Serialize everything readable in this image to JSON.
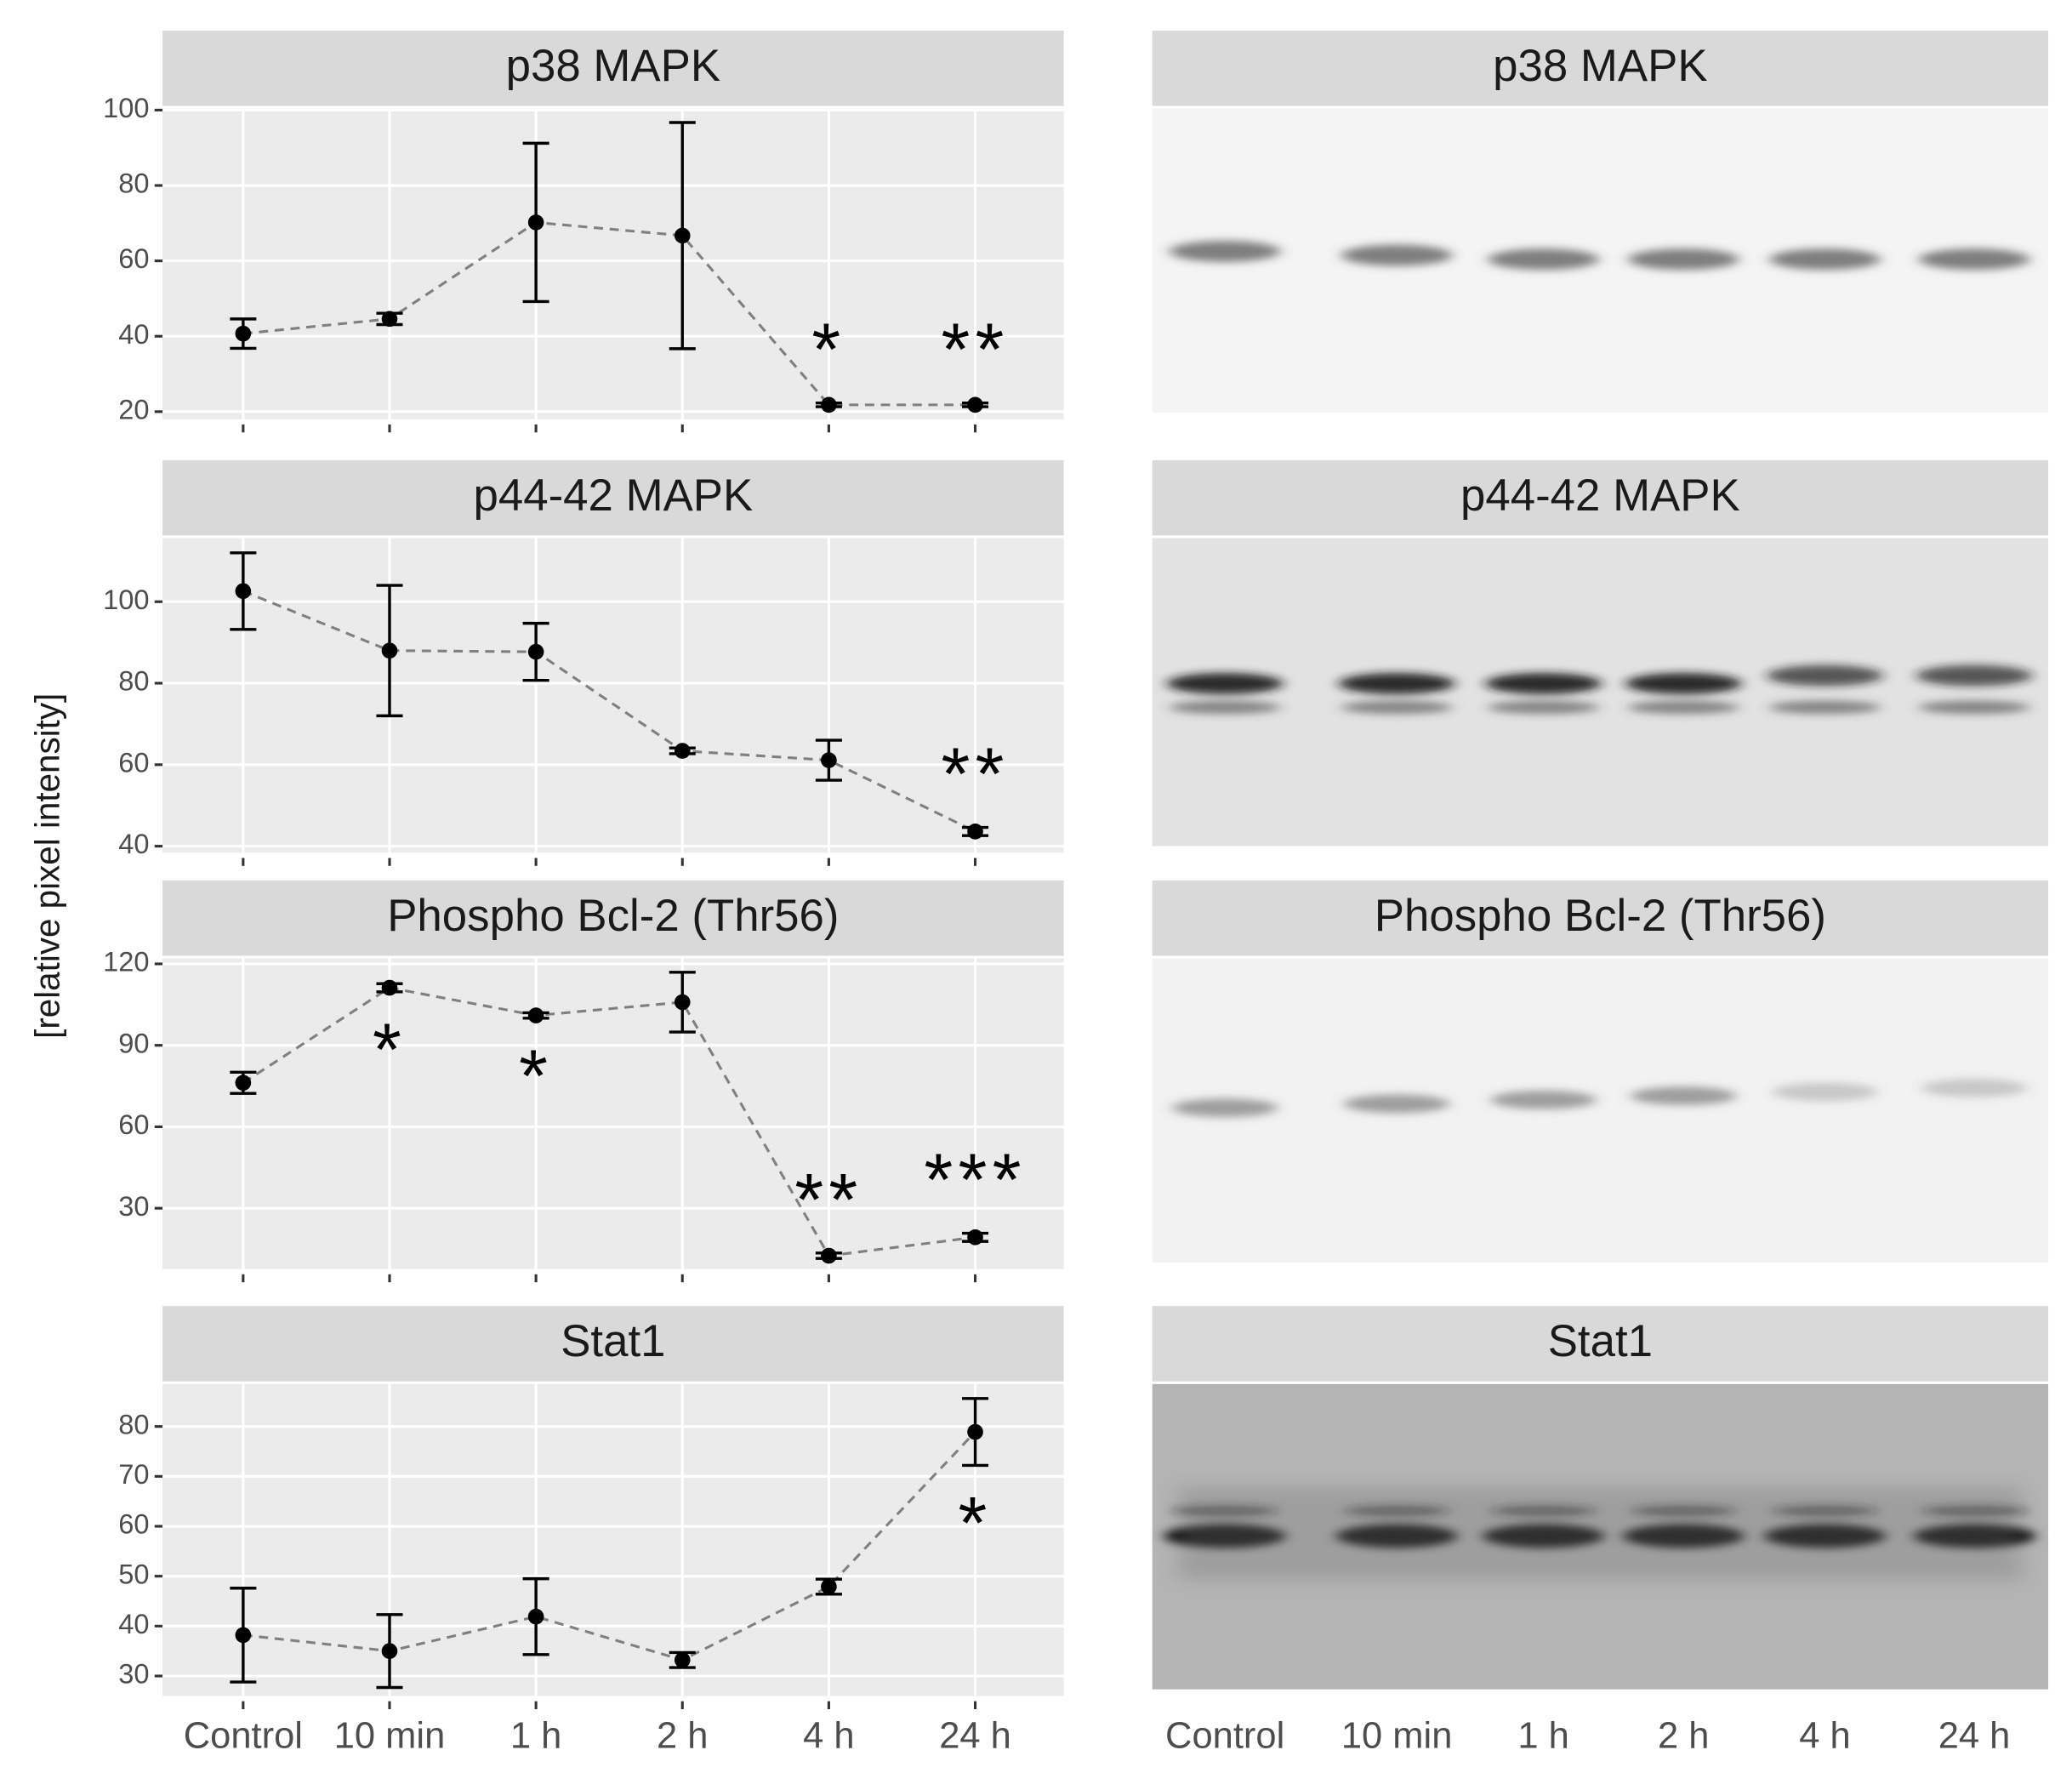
{
  "ylabel": "[relative pixel intensity]",
  "chart_data": [
    {
      "type": "line",
      "title": "p38 MAPK",
      "categories": [
        null,
        null,
        null,
        null,
        null,
        null
      ],
      "values": [
        40.7,
        44.6,
        70.2,
        66.7,
        21.8,
        21.8
      ],
      "errors": [
        3.9,
        1.5,
        21,
        30,
        0.5,
        0.5
      ],
      "significance": [
        null,
        null,
        null,
        null,
        "*",
        "**"
      ],
      "ylim": [
        18,
        100.4
      ],
      "yticks": [
        20,
        40,
        60,
        80,
        100
      ],
      "grid": true,
      "color": "#808080"
    },
    {
      "type": "line",
      "title": "p44-42 MAPK",
      "categories": [
        null,
        null,
        null,
        null,
        null,
        null
      ],
      "values": [
        102.6,
        88.0,
        87.7,
        63.4,
        61.1,
        43.6
      ],
      "errors": [
        9.4,
        16,
        7,
        0.7,
        4.9,
        1
      ],
      "significance": [
        null,
        null,
        null,
        null,
        null,
        "**"
      ],
      "ylim": [
        38.4,
        115.6
      ],
      "yticks": [
        40,
        60,
        80,
        100
      ],
      "grid": true,
      "color": "#808080"
    },
    {
      "type": "line",
      "title": "Phospho Bcl-2 (Thr56)",
      "categories": [
        null,
        null,
        null,
        null,
        null,
        null
      ],
      "values": [
        76.2,
        111.2,
        101,
        105.9,
        12.5,
        19.3
      ],
      "errors": [
        3.9,
        1.5,
        1,
        11,
        1,
        1.5
      ],
      "significance": [
        null,
        "*",
        "*",
        null,
        "**",
        "***"
      ],
      "ylim": [
        7.6,
        122
      ],
      "yticks": [
        30,
        60,
        90,
        120
      ],
      "grid": true,
      "color": "#808080"
    },
    {
      "type": "line",
      "title": "Stat1",
      "categories": [
        "Control",
        "10 min",
        "1 h",
        "2 h",
        "4 h",
        "24 h"
      ],
      "values": [
        38.2,
        35.0,
        41.9,
        33.2,
        47.9,
        78.9
      ],
      "errors": [
        9.4,
        7.3,
        7.6,
        1.5,
        1.5,
        6.7
      ],
      "significance": [
        null,
        null,
        null,
        null,
        null,
        "*"
      ],
      "ylim": [
        26,
        88.5
      ],
      "yticks": [
        30,
        40,
        50,
        60,
        70,
        80
      ],
      "grid": true,
      "color": "#808080"
    }
  ],
  "blots": {
    "titles": [
      "p38 MAPK",
      "p44-42 MAPK",
      "Phospho Bcl-2 (Thr56)",
      "Stat1"
    ],
    "lanes": [
      "Control",
      "10 min",
      "1 h",
      "2 h",
      "4 h",
      "24 h"
    ]
  }
}
